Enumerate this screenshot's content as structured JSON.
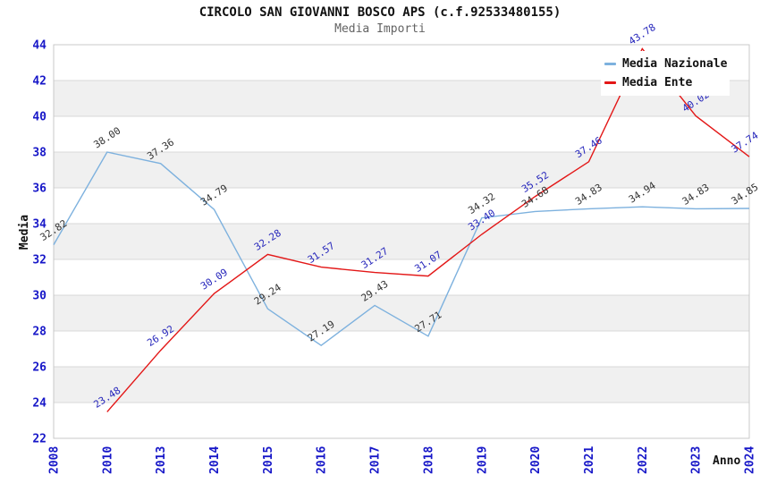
{
  "header": {
    "title": "CIRCOLO SAN GIOVANNI BOSCO APS (c.f.92533480155)",
    "subtitle": "Media Importi"
  },
  "axes": {
    "ylabel": "Media",
    "xlabel": "Anno"
  },
  "legend": {
    "position": "top-right",
    "items": [
      {
        "label": "Media Nazionale",
        "color": "#7db1de"
      },
      {
        "label": "Media Ente",
        "color": "#e31717"
      }
    ]
  },
  "colors": {
    "band_gray": "#f0f0f0",
    "grid_line": "#d8d8d8",
    "plot_border": "#c9c9c9",
    "axis_tick_text": "#1717c8",
    "nazionale_label_text": "#333333",
    "ente_label_text": "#2525bb",
    "title_text": "#111111",
    "subtitle_text": "#636363"
  },
  "chart_data": {
    "type": "line",
    "title": "CIRCOLO SAN GIOVANNI BOSCO APS (c.f.92533480155)",
    "subtitle": "Media Importi",
    "xlabel": "Anno",
    "ylabel": "Media",
    "categories": [
      "2008",
      "2010",
      "2013",
      "2014",
      "2015",
      "2016",
      "2017",
      "2018",
      "2019",
      "2020",
      "2021",
      "2022",
      "2023",
      "2024"
    ],
    "series": [
      {
        "name": "Media Nazionale",
        "color": "#7db1de",
        "label_color": "#333333",
        "values": [
          32.82,
          38.0,
          37.36,
          34.79,
          29.24,
          27.19,
          29.43,
          27.71,
          34.32,
          34.68,
          34.83,
          34.94,
          34.83,
          34.85
        ]
      },
      {
        "name": "Media Ente",
        "color": "#e31717",
        "label_color": "#2525bb",
        "values": [
          null,
          23.48,
          26.92,
          30.09,
          32.28,
          31.57,
          31.27,
          31.07,
          33.4,
          35.52,
          37.46,
          43.78,
          40.02,
          37.74
        ]
      }
    ],
    "ylim": [
      22,
      44
    ],
    "y_ticks": [
      22,
      24,
      26,
      28,
      30,
      32,
      34,
      36,
      38,
      40,
      42,
      44
    ],
    "grid": "horizontal-bands-alternating",
    "point_labels": "values shown rotated above each point",
    "legend_position": "top-right"
  }
}
